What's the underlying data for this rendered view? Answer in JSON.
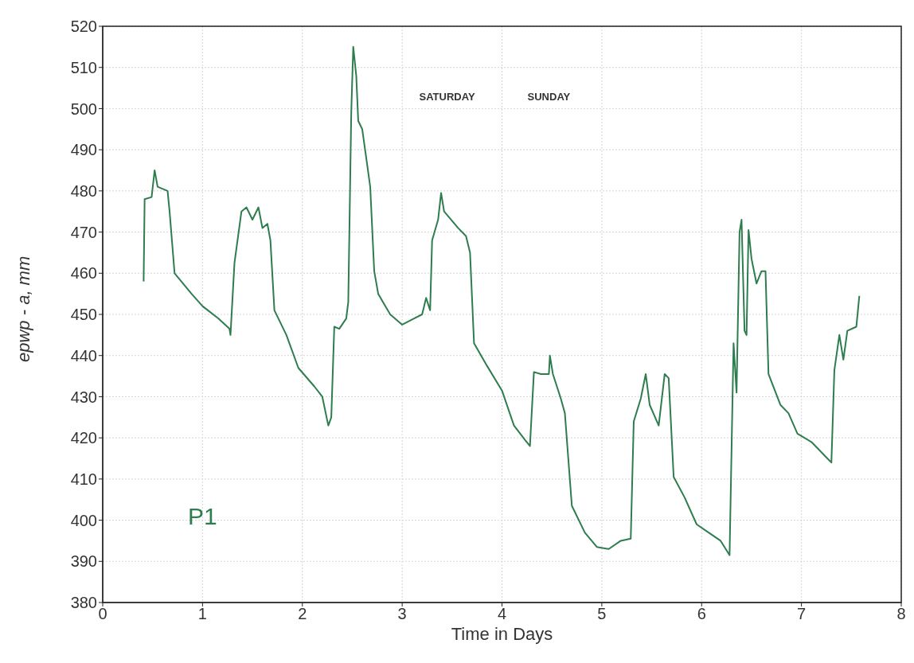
{
  "chart_data": {
    "type": "line",
    "xlabel": "Time in Days",
    "ylabel": "epwp - a, mm",
    "xlim": [
      0,
      8
    ],
    "ylim": [
      380,
      520
    ],
    "xticks": [
      0,
      1,
      2,
      3,
      4,
      5,
      6,
      7,
      8
    ],
    "yticks": [
      380,
      390,
      400,
      410,
      420,
      430,
      440,
      450,
      460,
      470,
      480,
      490,
      500,
      510,
      520
    ],
    "grid": true,
    "annotations": [
      "SATURDAY",
      "SUNDAY",
      "P1"
    ],
    "series": [
      {
        "color": "#2e7d4f",
        "x": [
          0.41,
          0.42,
          0.49,
          0.52,
          0.55,
          0.65,
          0.67,
          0.72,
          0.89,
          1.0,
          1.16,
          1.27,
          1.28,
          1.32,
          1.39,
          1.44,
          1.5,
          1.56,
          1.6,
          1.65,
          1.68,
          1.72,
          1.84,
          1.96,
          2.12,
          2.2,
          2.26,
          2.29,
          2.32,
          2.37,
          2.44,
          2.46,
          2.49,
          2.51,
          2.54,
          2.56,
          2.6,
          2.64,
          2.68,
          2.72,
          2.76,
          2.88,
          3.0,
          3.12,
          3.2,
          3.24,
          3.28,
          3.3,
          3.36,
          3.39,
          3.42,
          3.56,
          3.64,
          3.68,
          3.72,
          3.85,
          4.0,
          4.12,
          4.23,
          4.28,
          4.32,
          4.39,
          4.47,
          4.48,
          4.51,
          4.59,
          4.63,
          4.7,
          4.83,
          4.95,
          5.07,
          5.19,
          5.29,
          5.32,
          5.39,
          5.44,
          5.48,
          5.57,
          5.63,
          5.67,
          5.72,
          5.83,
          5.95,
          6.07,
          6.19,
          6.28,
          6.32,
          6.35,
          6.38,
          6.4,
          6.43,
          6.45,
          6.47,
          6.5,
          6.55,
          6.6,
          6.64,
          6.67,
          6.79,
          6.87,
          6.96,
          7.1,
          7.26,
          7.3,
          7.33,
          7.38,
          7.42,
          7.46,
          7.55,
          7.57,
          7.58
        ],
        "values": [
          458,
          478,
          478.5,
          485,
          481,
          480,
          475,
          460,
          455,
          452,
          449,
          446.5,
          445,
          462.5,
          475,
          476,
          473,
          476,
          471,
          472,
          468,
          451,
          445,
          437,
          432.5,
          430,
          423,
          425,
          447,
          446.5,
          449,
          453,
          499,
          515,
          508,
          497,
          495,
          488,
          481,
          460.5,
          455,
          450,
          447.5,
          449,
          450,
          454,
          451,
          468,
          473,
          479.5,
          475,
          471,
          469,
          465,
          443,
          437.5,
          431.5,
          423,
          419.5,
          418,
          436,
          435.5,
          435.5,
          440,
          435.5,
          429.5,
          426,
          403.5,
          397,
          393.5,
          393,
          395,
          395.5,
          424,
          429.5,
          435.5,
          428,
          423,
          435.5,
          434.5,
          410.5,
          405.5,
          399,
          397,
          395,
          391.5,
          443,
          431,
          470,
          473,
          446,
          445,
          470.5,
          463.5,
          457.5,
          460.5,
          460.5,
          435.5,
          428,
          426,
          421,
          419,
          415,
          414,
          436.5,
          445,
          439,
          446,
          447,
          452,
          454.5
        ]
      }
    ]
  }
}
